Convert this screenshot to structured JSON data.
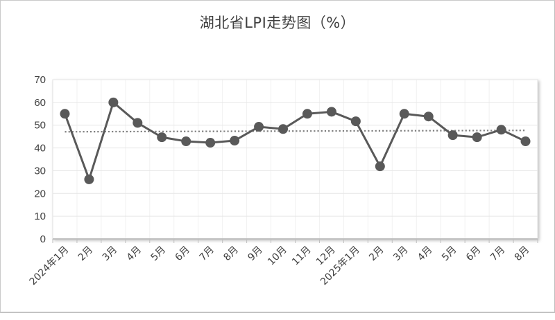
{
  "chart_data": {
    "type": "line",
    "title": "湖北省LPI走势图（%）",
    "xlabel": "",
    "ylabel": "",
    "ylim": [
      0,
      70
    ],
    "yticks": [
      0,
      10,
      20,
      30,
      40,
      50,
      60,
      70
    ],
    "grid": true,
    "legend": "none",
    "categories": [
      "2024年1月",
      "2月",
      "3月",
      "4月",
      "5月",
      "6月",
      "7月",
      "8月",
      "9月",
      "10月",
      "11月",
      "12月",
      "2025年1月",
      "2月",
      "3月",
      "4月",
      "5月",
      "6月",
      "7月",
      "8月"
    ],
    "series": [
      {
        "name": "湖北省LPI",
        "style": "solid line with circle markers",
        "color": "#595959",
        "values": [
          55.0,
          26.2,
          60.0,
          51.0,
          44.7,
          42.9,
          42.3,
          43.2,
          49.3,
          48.3,
          55.0,
          55.9,
          51.7,
          31.9,
          55.0,
          53.8,
          45.6,
          44.7,
          48.0,
          42.9
        ]
      },
      {
        "name": "趋势线",
        "style": "dotted linear trendline",
        "color": "#7f7f7f",
        "start": 47.1,
        "end": 47.7
      }
    ]
  },
  "header": {
    "title": "湖北省LPI走势图（%）"
  }
}
